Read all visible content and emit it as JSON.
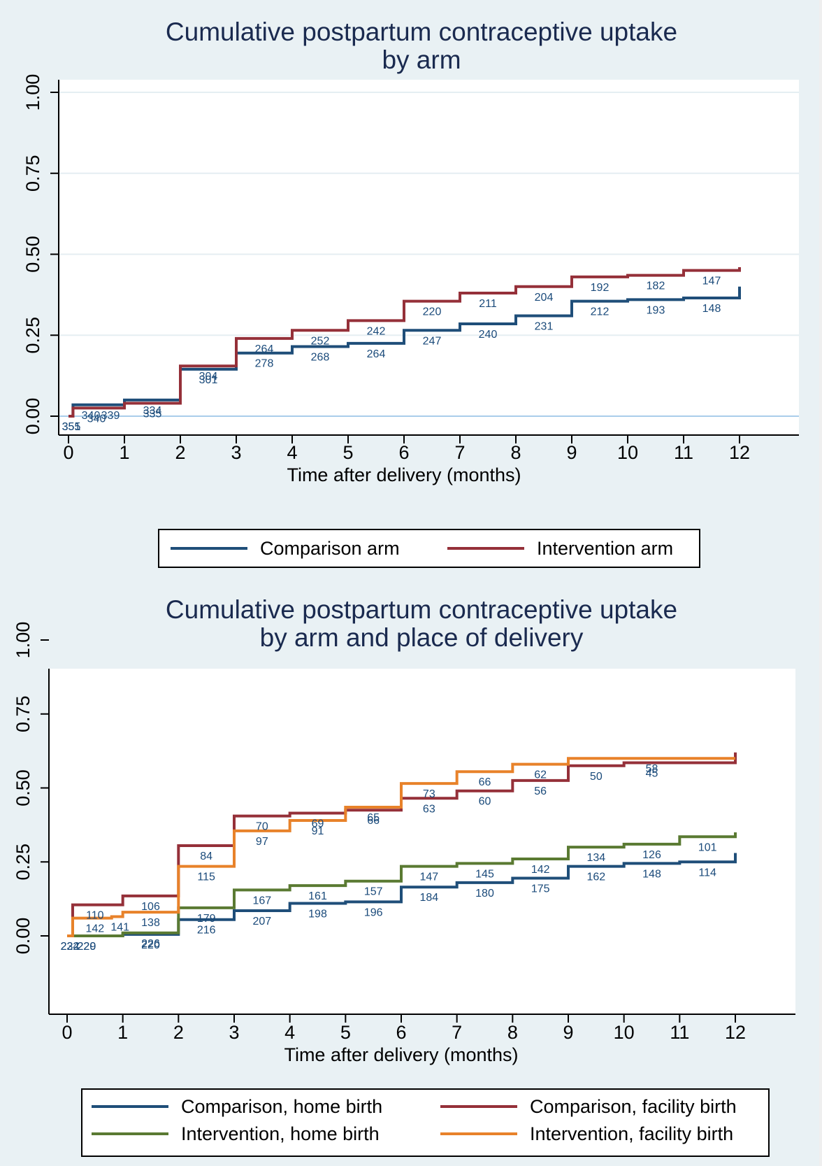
{
  "chart_data": [
    {
      "type": "line",
      "step": true,
      "title": "Cumulative postpartum contraceptive uptake\nby arm",
      "title_lines": [
        "Cumulative postpartum contraceptive uptake",
        "by arm"
      ],
      "xlabel": "Time after delivery (months)",
      "ylabel": "",
      "xlim": [
        0,
        12
      ],
      "ylim": [
        0,
        1
      ],
      "xticks": [
        0,
        1,
        2,
        3,
        4,
        5,
        6,
        7,
        8,
        9,
        10,
        11,
        12
      ],
      "yticks": [
        0,
        0.25,
        0.5,
        0.75,
        1
      ],
      "ytick_labels": [
        "0.00",
        "0.25",
        "0.50",
        "0.75",
        "1.00"
      ],
      "grid": true,
      "legend": {
        "placement": "bottom",
        "columns": 2
      },
      "series": [
        {
          "name": "Comparison arm",
          "color": "#1f4e79",
          "x": [
            0,
            0.08,
            1,
            2,
            3,
            4,
            5,
            6,
            7,
            8,
            9,
            10,
            11,
            12
          ],
          "y": [
            0,
            0.035,
            0.05,
            0.145,
            0.195,
            0.215,
            0.225,
            0.265,
            0.285,
            0.31,
            0.355,
            0.36,
            0.365,
            0.4
          ],
          "at_risk": [
            {
              "x": 0.05,
              "n": "355"
            },
            {
              "x": 0.4,
              "n": "340"
            },
            {
              "x": 0.75,
              "n": "339"
            },
            {
              "x": 1.5,
              "n": "334"
            },
            {
              "x": 2.5,
              "n": "301"
            },
            {
              "x": 3.5,
              "n": "278"
            },
            {
              "x": 4.5,
              "n": "268"
            },
            {
              "x": 5.5,
              "n": "264"
            },
            {
              "x": 6.5,
              "n": "247"
            },
            {
              "x": 7.5,
              "n": "240"
            },
            {
              "x": 8.5,
              "n": "231"
            },
            {
              "x": 9.5,
              "n": "212"
            },
            {
              "x": 10.5,
              "n": "193"
            },
            {
              "x": 11.5,
              "n": "148"
            }
          ]
        },
        {
          "name": "Intervention arm",
          "color": "#953039",
          "x": [
            0,
            0.08,
            1,
            2,
            3,
            4,
            5,
            6,
            7,
            8,
            9,
            10,
            11,
            12
          ],
          "y": [
            0,
            0.025,
            0.04,
            0.155,
            0.24,
            0.265,
            0.295,
            0.355,
            0.38,
            0.4,
            0.43,
            0.435,
            0.45,
            0.46
          ],
          "at_risk": [
            {
              "x": 0.05,
              "n": "351"
            },
            {
              "x": 0.5,
              "n": "340"
            },
            {
              "x": 1.5,
              "n": "335"
            },
            {
              "x": 2.5,
              "n": "304"
            },
            {
              "x": 3.5,
              "n": "264"
            },
            {
              "x": 4.5,
              "n": "252"
            },
            {
              "x": 5.5,
              "n": "242"
            },
            {
              "x": 6.5,
              "n": "220"
            },
            {
              "x": 7.5,
              "n": "211"
            },
            {
              "x": 8.5,
              "n": "204"
            },
            {
              "x": 9.5,
              "n": "192"
            },
            {
              "x": 10.5,
              "n": "182"
            },
            {
              "x": 11.5,
              "n": "147"
            }
          ]
        }
      ]
    },
    {
      "type": "line",
      "step": true,
      "title": "Cumulative postpartum contraceptive uptake\nby arm and place of delivery",
      "title_lines": [
        "Cumulative postpartum contraceptive uptake",
        "by arm and place of delivery"
      ],
      "xlabel": "Time after delivery (months)",
      "ylabel": "",
      "xlim": [
        0,
        12
      ],
      "ylim": [
        0,
        1
      ],
      "xticks": [
        0,
        1,
        2,
        3,
        4,
        5,
        6,
        7,
        8,
        9,
        10,
        11,
        12
      ],
      "yticks": [
        0,
        0.25,
        0.5,
        0.75,
        1
      ],
      "ytick_labels": [
        "0.00",
        "0.25",
        "0.50",
        "0.75",
        "1.00"
      ],
      "grid": false,
      "legend": {
        "placement": "bottom",
        "columns": 2
      },
      "series": [
        {
          "name": "Comparison, home birth",
          "color": "#1f4e79",
          "x": [
            0,
            1,
            2,
            3,
            4,
            5,
            6,
            7,
            8,
            9,
            10,
            11,
            12
          ],
          "y": [
            0,
            0.005,
            0.055,
            0.085,
            0.11,
            0.115,
            0.165,
            0.18,
            0.195,
            0.235,
            0.245,
            0.25,
            0.28
          ],
          "at_risk": [
            {
              "x": 0.05,
              "n": "224"
            },
            {
              "x": 0.35,
              "n": "220"
            },
            {
              "x": 1.5,
              "n": "220"
            },
            {
              "x": 2.5,
              "n": "216"
            },
            {
              "x": 3.5,
              "n": "207"
            },
            {
              "x": 4.5,
              "n": "198"
            },
            {
              "x": 5.5,
              "n": "196"
            },
            {
              "x": 6.5,
              "n": "184"
            },
            {
              "x": 7.5,
              "n": "180"
            },
            {
              "x": 8.5,
              "n": "175"
            },
            {
              "x": 9.5,
              "n": "162"
            },
            {
              "x": 10.5,
              "n": "148"
            },
            {
              "x": 11.5,
              "n": "114"
            }
          ]
        },
        {
          "name": "Comparison, facility birth",
          "color": "#953039",
          "x": [
            0,
            0.1,
            1,
            2,
            3,
            4,
            5,
            6,
            7,
            8,
            9,
            10,
            12
          ],
          "y": [
            0,
            0.105,
            0.135,
            0.305,
            0.405,
            0.415,
            0.425,
            0.465,
            0.49,
            0.525,
            0.575,
            0.585,
            0.62
          ],
          "at_risk": [
            {
              "x": 0.5,
              "n": "110"
            },
            {
              "x": 1.5,
              "n": "106"
            },
            {
              "x": 2.5,
              "n": "84"
            },
            {
              "x": 3.5,
              "n": "70"
            },
            {
              "x": 4.5,
              "n": "69"
            },
            {
              "x": 5.5,
              "n": "66"
            },
            {
              "x": 6.5,
              "n": "63"
            },
            {
              "x": 7.5,
              "n": "60"
            },
            {
              "x": 8.5,
              "n": "56"
            },
            {
              "x": 9.5,
              "n": "50"
            },
            {
              "x": 10.5,
              "n": "45"
            }
          ]
        },
        {
          "name": "Intervention, home birth",
          "color": "#5a7a32",
          "x": [
            0,
            1,
            2,
            3,
            4,
            5,
            6,
            7,
            8,
            9,
            10,
            11,
            12
          ],
          "y": [
            0,
            0.01,
            0.095,
            0.155,
            0.17,
            0.185,
            0.235,
            0.245,
            0.26,
            0.3,
            0.31,
            0.335,
            0.35
          ],
          "at_risk": [
            {
              "x": 0.05,
              "n": "232"
            },
            {
              "x": 0.35,
              "n": "229"
            },
            {
              "x": 1.5,
              "n": "226"
            },
            {
              "x": 2.5,
              "n": "179"
            },
            {
              "x": 3.5,
              "n": "167"
            },
            {
              "x": 4.5,
              "n": "161"
            },
            {
              "x": 5.5,
              "n": "157"
            },
            {
              "x": 6.5,
              "n": "147"
            },
            {
              "x": 7.5,
              "n": "145"
            },
            {
              "x": 8.5,
              "n": "142"
            },
            {
              "x": 9.5,
              "n": "134"
            },
            {
              "x": 10.5,
              "n": "126"
            },
            {
              "x": 11.5,
              "n": "101"
            }
          ]
        },
        {
          "name": "Intervention, facility birth",
          "color": "#e8822a",
          "x": [
            0,
            0.1,
            0.8,
            1,
            2,
            3,
            4,
            5,
            6,
            7,
            8,
            9,
            12
          ],
          "y": [
            0,
            0.06,
            0.065,
            0.08,
            0.235,
            0.355,
            0.39,
            0.435,
            0.515,
            0.555,
            0.58,
            0.6,
            0.6
          ],
          "at_risk": [
            {
              "x": 0.5,
              "n": "142"
            },
            {
              "x": 0.95,
              "n": "141"
            },
            {
              "x": 1.5,
              "n": "138"
            },
            {
              "x": 2.5,
              "n": "115"
            },
            {
              "x": 3.5,
              "n": "97"
            },
            {
              "x": 4.5,
              "n": "91"
            },
            {
              "x": 5.5,
              "n": "65"
            },
            {
              "x": 6.5,
              "n": "73"
            },
            {
              "x": 7.5,
              "n": "66"
            },
            {
              "x": 8.5,
              "n": "62"
            },
            {
              "x": 10.5,
              "n": "58"
            }
          ]
        }
      ]
    }
  ]
}
